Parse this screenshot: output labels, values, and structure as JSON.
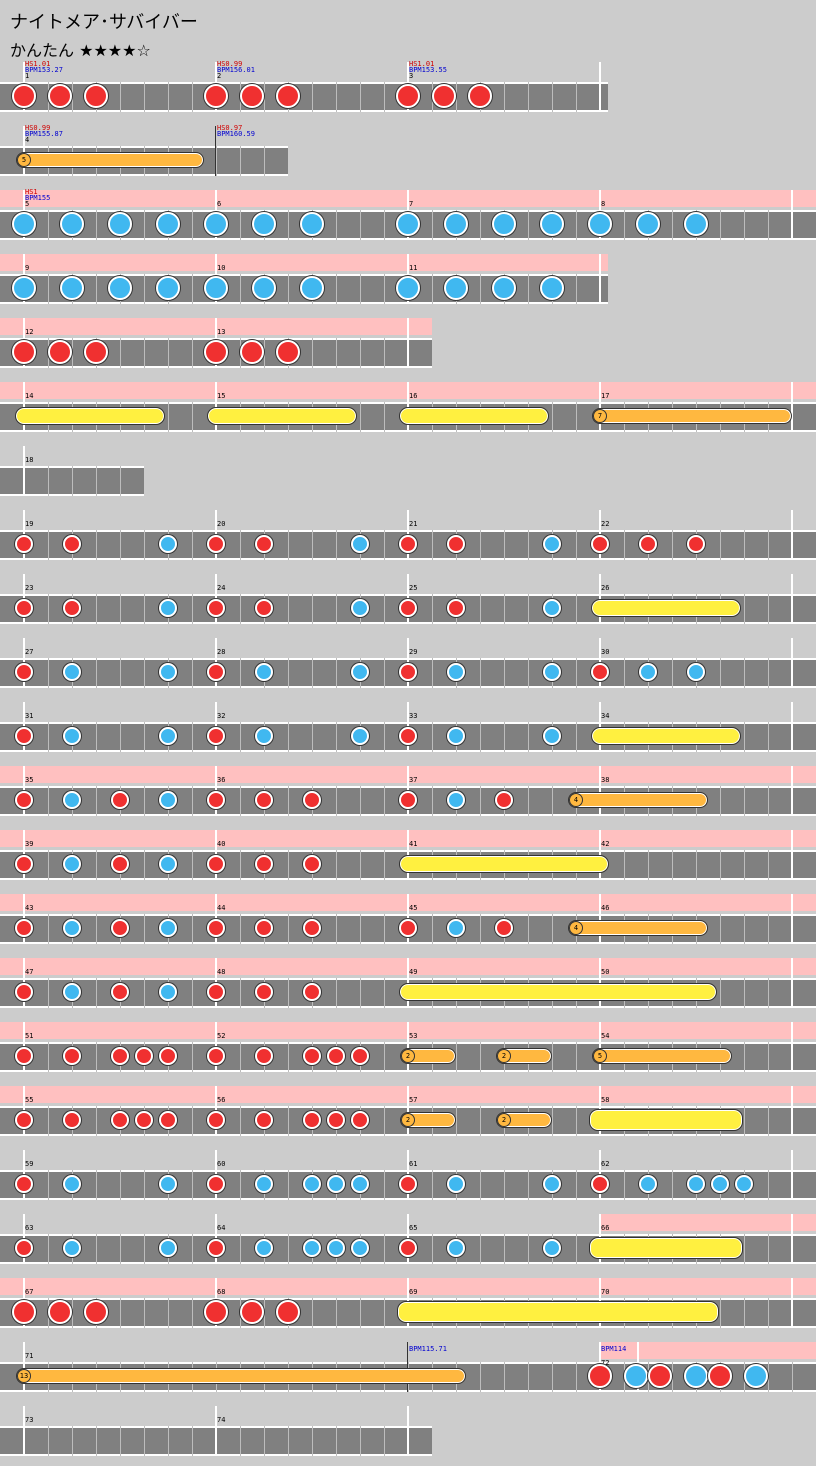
{
  "song": {
    "title": "ナイトメア･サバイバー",
    "difficulty": "かんたん",
    "stars": "★★★★☆"
  },
  "colors": {
    "background": "#cccccc",
    "lane": "#808080",
    "kiai": "#ffc0c0",
    "don": "#f03030",
    "ka": "#40b8f0",
    "roll": "#fff040",
    "balloon": "#ffb840",
    "hs_text": "#d00000",
    "bpm_text": "#0000d0"
  },
  "rows": [
    {
      "measures": [
        1,
        2,
        3
      ],
      "beats": 4,
      "kiai": [],
      "ann": [
        {
          "m": 0,
          "hs": "HS1.01",
          "bpm": "BPM153.27"
        },
        {
          "m": 1,
          "hs": "HS0.99",
          "bpm": "BPM156.01"
        },
        {
          "m": 2,
          "hs": "HS1.01",
          "bpm": "BPM153.55"
        }
      ],
      "notes": [
        {
          "t": "D",
          "p": 0
        },
        {
          "t": "D",
          "p": 0.1875
        },
        {
          "t": "D",
          "p": 0.375
        },
        {
          "t": "D",
          "p": 1
        },
        {
          "t": "D",
          "p": 1.1875
        },
        {
          "t": "D",
          "p": 1.375
        },
        {
          "t": "D",
          "p": 2
        },
        {
          "t": "D",
          "p": 2.1875
        },
        {
          "t": "D",
          "p": 2.375
        }
      ]
    },
    {
      "measures": [
        4,
        5
      ],
      "beats": 4,
      "lens": [
        1,
        0.375
      ],
      "kiai": [],
      "ann": [
        {
          "m": 0,
          "hs": "HS0.99",
          "bpm": "BPM155.87"
        },
        {
          "m": 1,
          "hs": "HS0.97",
          "bpm": "BPM160.59"
        }
      ],
      "darkbar": [
        1
      ],
      "notes": [
        {
          "t": "B",
          "p": 0,
          "e": 0.9375,
          "n": "5"
        }
      ],
      "hideNums": [
        1
      ]
    },
    {
      "measures": [
        5,
        6,
        7,
        8
      ],
      "beats": 4,
      "full": true,
      "kiai": [
        [
          0,
          4.2
        ]
      ],
      "ann": [
        {
          "m": 0,
          "hs": "HS1",
          "bpm": "BPM155"
        }
      ],
      "notes": [
        {
          "t": "K",
          "p": 0
        },
        {
          "t": "K",
          "p": 0.25
        },
        {
          "t": "K",
          "p": 0.5
        },
        {
          "t": "K",
          "p": 0.75
        },
        {
          "t": "K",
          "p": 1
        },
        {
          "t": "K",
          "p": 1.25
        },
        {
          "t": "K",
          "p": 1.5
        },
        {
          "t": "K",
          "p": 2
        },
        {
          "t": "K",
          "p": 2.25
        },
        {
          "t": "K",
          "p": 2.5
        },
        {
          "t": "K",
          "p": 2.75
        },
        {
          "t": "K",
          "p": 3
        },
        {
          "t": "K",
          "p": 3.25
        },
        {
          "t": "K",
          "p": 3.5
        }
      ]
    },
    {
      "measures": [
        9,
        10,
        11
      ],
      "beats": 4,
      "kiai": [
        [
          0,
          3
        ]
      ],
      "ann": [],
      "notes": [
        {
          "t": "K",
          "p": 0
        },
        {
          "t": "K",
          "p": 0.25
        },
        {
          "t": "K",
          "p": 0.5
        },
        {
          "t": "K",
          "p": 0.75
        },
        {
          "t": "K",
          "p": 1
        },
        {
          "t": "K",
          "p": 1.25
        },
        {
          "t": "K",
          "p": 1.5
        },
        {
          "t": "K",
          "p": 2
        },
        {
          "t": "K",
          "p": 2.25
        },
        {
          "t": "K",
          "p": 2.5
        },
        {
          "t": "K",
          "p": 2.75
        }
      ]
    },
    {
      "measures": [
        12,
        13
      ],
      "beats": 4,
      "kiai": [
        [
          0,
          2
        ]
      ],
      "ann": [],
      "notes": [
        {
          "t": "D",
          "p": 0
        },
        {
          "t": "D",
          "p": 0.1875
        },
        {
          "t": "D",
          "p": 0.375
        },
        {
          "t": "D",
          "p": 1
        },
        {
          "t": "D",
          "p": 1.1875
        },
        {
          "t": "D",
          "p": 1.375
        }
      ]
    },
    {
      "measures": [
        14,
        15,
        16,
        17
      ],
      "beats": 4,
      "full": true,
      "kiai": [
        [
          0,
          4.2
        ]
      ],
      "ann": [],
      "notes": [
        {
          "t": "R",
          "p": 0,
          "e": 0.6875
        },
        {
          "t": "R",
          "p": 1,
          "e": 1.6875
        },
        {
          "t": "R",
          "p": 2,
          "e": 2.6875
        },
        {
          "t": "B",
          "p": 3,
          "e": 4,
          "n": "7"
        }
      ]
    },
    {
      "measures": [
        18
      ],
      "beats": 4,
      "lens": [
        0.75
      ],
      "kiai": [],
      "ann": [],
      "notes": []
    },
    {
      "measures": [
        19,
        20,
        21,
        22
      ],
      "beats": 4,
      "full": true,
      "kiai": [],
      "ann": [],
      "notes": [
        {
          "t": "d",
          "p": 0
        },
        {
          "t": "d",
          "p": 0.25
        },
        {
          "t": "k",
          "p": 0.75
        },
        {
          "t": "d",
          "p": 1
        },
        {
          "t": "d",
          "p": 1.25
        },
        {
          "t": "k",
          "p": 1.75
        },
        {
          "t": "d",
          "p": 2
        },
        {
          "t": "d",
          "p": 2.25
        },
        {
          "t": "k",
          "p": 2.75
        },
        {
          "t": "d",
          "p": 3
        },
        {
          "t": "d",
          "p": 3.25
        },
        {
          "t": "d",
          "p": 3.5
        }
      ]
    },
    {
      "measures": [
        23,
        24,
        25,
        26
      ],
      "beats": 4,
      "full": true,
      "kiai": [],
      "ann": [],
      "notes": [
        {
          "t": "d",
          "p": 0
        },
        {
          "t": "d",
          "p": 0.25
        },
        {
          "t": "k",
          "p": 0.75
        },
        {
          "t": "d",
          "p": 1
        },
        {
          "t": "d",
          "p": 1.25
        },
        {
          "t": "k",
          "p": 1.75
        },
        {
          "t": "d",
          "p": 2
        },
        {
          "t": "d",
          "p": 2.25
        },
        {
          "t": "k",
          "p": 2.75
        },
        {
          "t": "R",
          "p": 3,
          "e": 3.6875
        }
      ]
    },
    {
      "measures": [
        27,
        28,
        29,
        30
      ],
      "beats": 4,
      "full": true,
      "kiai": [],
      "ann": [],
      "notes": [
        {
          "t": "d",
          "p": 0
        },
        {
          "t": "k",
          "p": 0.25
        },
        {
          "t": "k",
          "p": 0.75
        },
        {
          "t": "d",
          "p": 1
        },
        {
          "t": "k",
          "p": 1.25
        },
        {
          "t": "k",
          "p": 1.75
        },
        {
          "t": "d",
          "p": 2
        },
        {
          "t": "k",
          "p": 2.25
        },
        {
          "t": "k",
          "p": 2.75
        },
        {
          "t": "d",
          "p": 3
        },
        {
          "t": "k",
          "p": 3.25
        },
        {
          "t": "k",
          "p": 3.5
        }
      ]
    },
    {
      "measures": [
        31,
        32,
        33,
        34
      ],
      "beats": 4,
      "full": true,
      "kiai": [],
      "ann": [],
      "notes": [
        {
          "t": "d",
          "p": 0
        },
        {
          "t": "k",
          "p": 0.25
        },
        {
          "t": "k",
          "p": 0.75
        },
        {
          "t": "d",
          "p": 1
        },
        {
          "t": "k",
          "p": 1.25
        },
        {
          "t": "k",
          "p": 1.75
        },
        {
          "t": "d",
          "p": 2
        },
        {
          "t": "k",
          "p": 2.25
        },
        {
          "t": "k",
          "p": 2.75
        },
        {
          "t": "R",
          "p": 3,
          "e": 3.6875
        }
      ]
    },
    {
      "measures": [
        35,
        36,
        37,
        38
      ],
      "beats": 4,
      "full": true,
      "kiai": [
        [
          0,
          4.2
        ]
      ],
      "ann": [],
      "notes": [
        {
          "t": "d",
          "p": 0
        },
        {
          "t": "k",
          "p": 0.25
        },
        {
          "t": "d",
          "p": 0.5
        },
        {
          "t": "k",
          "p": 0.75
        },
        {
          "t": "d",
          "p": 1
        },
        {
          "t": "d",
          "p": 1.25
        },
        {
          "t": "d",
          "p": 1.5
        },
        {
          "t": "d",
          "p": 2
        },
        {
          "t": "k",
          "p": 2.25
        },
        {
          "t": "d",
          "p": 2.5
        },
        {
          "t": "B",
          "p": 2.875,
          "e": 3.5625,
          "n": "4"
        }
      ]
    },
    {
      "measures": [
        39,
        40,
        41,
        42
      ],
      "beats": 4,
      "full": true,
      "kiai": [
        [
          0,
          4.2
        ]
      ],
      "ann": [],
      "notes": [
        {
          "t": "d",
          "p": 0
        },
        {
          "t": "k",
          "p": 0.25
        },
        {
          "t": "d",
          "p": 0.5
        },
        {
          "t": "k",
          "p": 0.75
        },
        {
          "t": "d",
          "p": 1
        },
        {
          "t": "d",
          "p": 1.25
        },
        {
          "t": "d",
          "p": 1.5
        },
        {
          "t": "R",
          "p": 2,
          "e": 3.0
        }
      ]
    },
    {
      "measures": [
        43,
        44,
        45,
        46
      ],
      "beats": 4,
      "full": true,
      "kiai": [
        [
          0,
          4.2
        ]
      ],
      "ann": [],
      "notes": [
        {
          "t": "d",
          "p": 0
        },
        {
          "t": "k",
          "p": 0.25
        },
        {
          "t": "d",
          "p": 0.5
        },
        {
          "t": "k",
          "p": 0.75
        },
        {
          "t": "d",
          "p": 1
        },
        {
          "t": "d",
          "p": 1.25
        },
        {
          "t": "d",
          "p": 1.5
        },
        {
          "t": "d",
          "p": 2
        },
        {
          "t": "k",
          "p": 2.25
        },
        {
          "t": "d",
          "p": 2.5
        },
        {
          "t": "B",
          "p": 2.875,
          "e": 3.5625,
          "n": "4"
        }
      ]
    },
    {
      "measures": [
        47,
        48,
        49,
        50
      ],
      "beats": 4,
      "full": true,
      "kiai": [
        [
          0,
          4.2
        ]
      ],
      "ann": [],
      "notes": [
        {
          "t": "d",
          "p": 0
        },
        {
          "t": "k",
          "p": 0.25
        },
        {
          "t": "d",
          "p": 0.5
        },
        {
          "t": "k",
          "p": 0.75
        },
        {
          "t": "d",
          "p": 1
        },
        {
          "t": "d",
          "p": 1.25
        },
        {
          "t": "d",
          "p": 1.5
        },
        {
          "t": "R",
          "p": 2,
          "e": 3.5625
        }
      ]
    },
    {
      "measures": [
        51,
        52,
        53,
        54
      ],
      "beats": 4,
      "full": true,
      "kiai": [
        [
          0,
          4.2
        ]
      ],
      "ann": [],
      "notes": [
        {
          "t": "d",
          "p": 0
        },
        {
          "t": "d",
          "p": 0.25
        },
        {
          "t": "d",
          "p": 0.5
        },
        {
          "t": "d",
          "p": 0.625
        },
        {
          "t": "d",
          "p": 0.75
        },
        {
          "t": "d",
          "p": 1
        },
        {
          "t": "d",
          "p": 1.25
        },
        {
          "t": "d",
          "p": 1.5
        },
        {
          "t": "d",
          "p": 1.625
        },
        {
          "t": "d",
          "p": 1.75
        },
        {
          "t": "B",
          "p": 2,
          "e": 2.25,
          "n": "2"
        },
        {
          "t": "B",
          "p": 2.5,
          "e": 2.75,
          "n": "2"
        },
        {
          "t": "B",
          "p": 3,
          "e": 3.6875,
          "n": "5"
        }
      ]
    },
    {
      "measures": [
        55,
        56,
        57,
        58
      ],
      "beats": 4,
      "full": true,
      "kiai": [
        [
          0,
          4.2
        ]
      ],
      "ann": [],
      "notes": [
        {
          "t": "d",
          "p": 0
        },
        {
          "t": "d",
          "p": 0.25
        },
        {
          "t": "d",
          "p": 0.5
        },
        {
          "t": "d",
          "p": 0.625
        },
        {
          "t": "d",
          "p": 0.75
        },
        {
          "t": "d",
          "p": 1
        },
        {
          "t": "d",
          "p": 1.25
        },
        {
          "t": "d",
          "p": 1.5
        },
        {
          "t": "d",
          "p": 1.625
        },
        {
          "t": "d",
          "p": 1.75
        },
        {
          "t": "B",
          "p": 2,
          "e": 2.25,
          "n": "2"
        },
        {
          "t": "B",
          "p": 2.5,
          "e": 2.75,
          "n": "2"
        },
        {
          "t": "RR",
          "p": 3,
          "e": 3.6875
        }
      ]
    },
    {
      "measures": [
        59,
        60,
        61,
        62
      ],
      "beats": 4,
      "full": true,
      "kiai": [],
      "ann": [],
      "notes": [
        {
          "t": "d",
          "p": 0
        },
        {
          "t": "k",
          "p": 0.25
        },
        {
          "t": "k",
          "p": 0.75
        },
        {
          "t": "d",
          "p": 1
        },
        {
          "t": "k",
          "p": 1.25
        },
        {
          "t": "k",
          "p": 1.5
        },
        {
          "t": "k",
          "p": 1.625
        },
        {
          "t": "k",
          "p": 1.75
        },
        {
          "t": "d",
          "p": 2
        },
        {
          "t": "k",
          "p": 2.25
        },
        {
          "t": "k",
          "p": 2.75
        },
        {
          "t": "d",
          "p": 3
        },
        {
          "t": "k",
          "p": 3.25
        },
        {
          "t": "k",
          "p": 3.5
        },
        {
          "t": "k",
          "p": 3.625
        },
        {
          "t": "k",
          "p": 3.75
        }
      ]
    },
    {
      "measures": [
        63,
        64,
        65,
        66
      ],
      "beats": 4,
      "full": true,
      "kiai": [
        [
          3,
          4.2
        ]
      ],
      "ann": [],
      "notes": [
        {
          "t": "d",
          "p": 0
        },
        {
          "t": "k",
          "p": 0.25
        },
        {
          "t": "k",
          "p": 0.75
        },
        {
          "t": "d",
          "p": 1
        },
        {
          "t": "k",
          "p": 1.25
        },
        {
          "t": "k",
          "p": 1.5
        },
        {
          "t": "k",
          "p": 1.625
        },
        {
          "t": "k",
          "p": 1.75
        },
        {
          "t": "d",
          "p": 2
        },
        {
          "t": "k",
          "p": 2.25
        },
        {
          "t": "k",
          "p": 2.75
        },
        {
          "t": "RR",
          "p": 3,
          "e": 3.6875
        }
      ]
    },
    {
      "measures": [
        67,
        68,
        69,
        70
      ],
      "beats": 4,
      "full": true,
      "kiai": [
        [
          0,
          4.2
        ]
      ],
      "ann": [],
      "notes": [
        {
          "t": "D",
          "p": 0
        },
        {
          "t": "D",
          "p": 0.1875
        },
        {
          "t": "D",
          "p": 0.375
        },
        {
          "t": "D",
          "p": 1
        },
        {
          "t": "D",
          "p": 1.1875
        },
        {
          "t": "D",
          "p": 1.375
        },
        {
          "t": "RR",
          "p": 2,
          "e": 3.5625
        }
      ]
    },
    {
      "measures": [
        71,
        72
      ],
      "beats": 4,
      "full": true,
      "lens": [
        2,
        1.2
      ],
      "kiai": [
        [
          3,
          4.2
        ]
      ],
      "ann": [
        {
          "m": 1,
          "hs": "",
          "bpm": "BPM115.71",
          "darkOnly": true
        },
        {
          "m": 2,
          "hs": "",
          "bpm": "BPM114"
        }
      ],
      "darkbar": [
        1
      ],
      "notes": [
        {
          "t": "B",
          "p": 0,
          "e": 2.3,
          "n": "13"
        },
        {
          "t": "D",
          "p": 3
        },
        {
          "t": "K",
          "p": 3.1875
        },
        {
          "t": "D",
          "p": 3.3125
        },
        {
          "t": "K",
          "p": 3.5
        },
        {
          "t": "D",
          "p": 3.625
        },
        {
          "t": "K",
          "p": 3.8125
        }
      ],
      "hideNums": [
        1
      ],
      "numOverride": {
        "2": "72"
      }
    },
    {
      "measures": [
        73,
        74
      ],
      "beats": 4,
      "kiai": [],
      "ann": [],
      "notes": []
    }
  ]
}
